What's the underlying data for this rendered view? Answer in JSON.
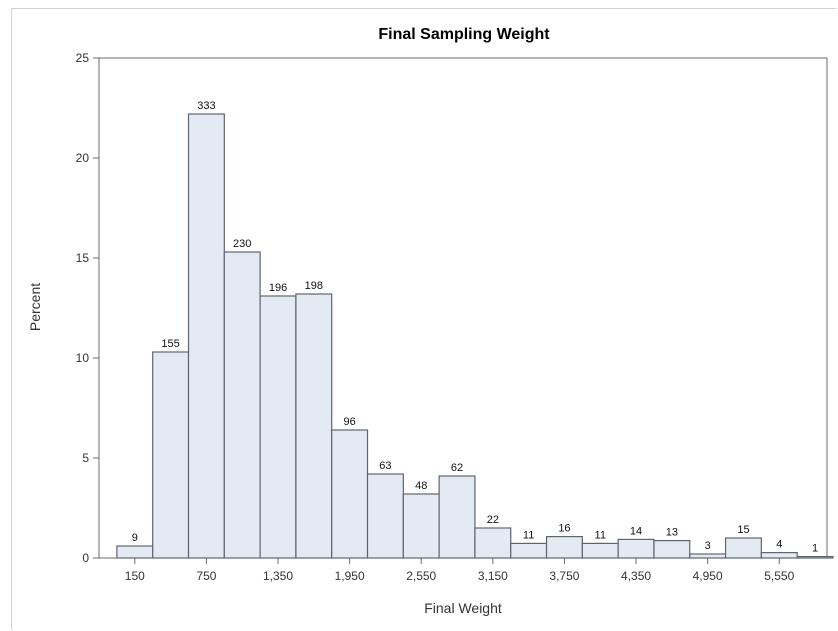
{
  "chart_data": {
    "type": "bar",
    "title": "Final Sampling Weight",
    "xlabel": "Final Weight",
    "ylabel": "Percent",
    "ylim": [
      0,
      25
    ],
    "yticks": [
      "0",
      "5",
      "10",
      "15",
      "20",
      "25"
    ],
    "xlim": [
      -150,
      5950
    ],
    "xticks": [
      {
        "value": 150,
        "label": "150"
      },
      {
        "value": 750,
        "label": "750"
      },
      {
        "value": 1350,
        "label": "1,350"
      },
      {
        "value": 1950,
        "label": "1,950"
      },
      {
        "value": 2550,
        "label": "2,550"
      },
      {
        "value": 3150,
        "label": "3,150"
      },
      {
        "value": 3750,
        "label": "3,750"
      },
      {
        "value": 4350,
        "label": "4,350"
      },
      {
        "value": 4950,
        "label": "4,950"
      },
      {
        "value": 5550,
        "label": "5,550"
      }
    ],
    "bin_width": 300,
    "bins": [
      {
        "x": 150,
        "percent": 0.6,
        "count": "9"
      },
      {
        "x": 450,
        "percent": 10.3,
        "count": "155"
      },
      {
        "x": 750,
        "percent": 22.2,
        "count": "333"
      },
      {
        "x": 1050,
        "percent": 15.3,
        "count": "230"
      },
      {
        "x": 1350,
        "percent": 13.1,
        "count": "196"
      },
      {
        "x": 1650,
        "percent": 13.2,
        "count": "198"
      },
      {
        "x": 1950,
        "percent": 6.4,
        "count": "96"
      },
      {
        "x": 2250,
        "percent": 4.2,
        "count": "63"
      },
      {
        "x": 2550,
        "percent": 3.2,
        "count": "48"
      },
      {
        "x": 2850,
        "percent": 4.1,
        "count": "62"
      },
      {
        "x": 3150,
        "percent": 1.5,
        "count": "22"
      },
      {
        "x": 3450,
        "percent": 0.73,
        "count": "11"
      },
      {
        "x": 3750,
        "percent": 1.07,
        "count": "16"
      },
      {
        "x": 4050,
        "percent": 0.73,
        "count": "11"
      },
      {
        "x": 4350,
        "percent": 0.93,
        "count": "14"
      },
      {
        "x": 4650,
        "percent": 0.87,
        "count": "13"
      },
      {
        "x": 4950,
        "percent": 0.2,
        "count": "3"
      },
      {
        "x": 5250,
        "percent": 1.0,
        "count": "15"
      },
      {
        "x": 5550,
        "percent": 0.27,
        "count": "4"
      },
      {
        "x": 5850,
        "percent": 0.07,
        "count": "1"
      }
    ]
  }
}
